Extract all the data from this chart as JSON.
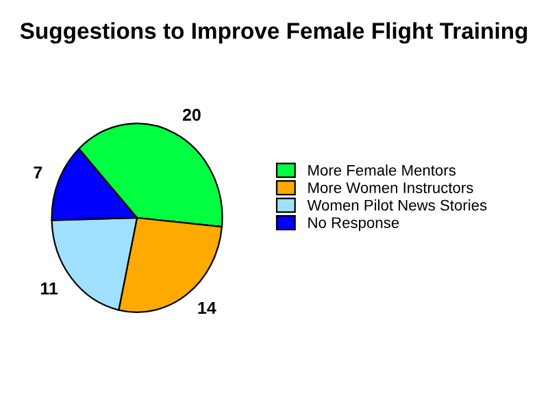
{
  "chart_data": {
    "type": "pie",
    "title": "Suggestions to Improve Female Flight Training",
    "categories": [
      "More Female Mentors",
      "More Women Instructors",
      "Women Pilot News Stories",
      "No Response"
    ],
    "values": [
      20,
      14,
      11,
      7
    ],
    "colors": [
      "#00ff40",
      "#ffaa00",
      "#a0e0ff",
      "#0000ff"
    ],
    "data_labels": true,
    "legend": "right"
  }
}
